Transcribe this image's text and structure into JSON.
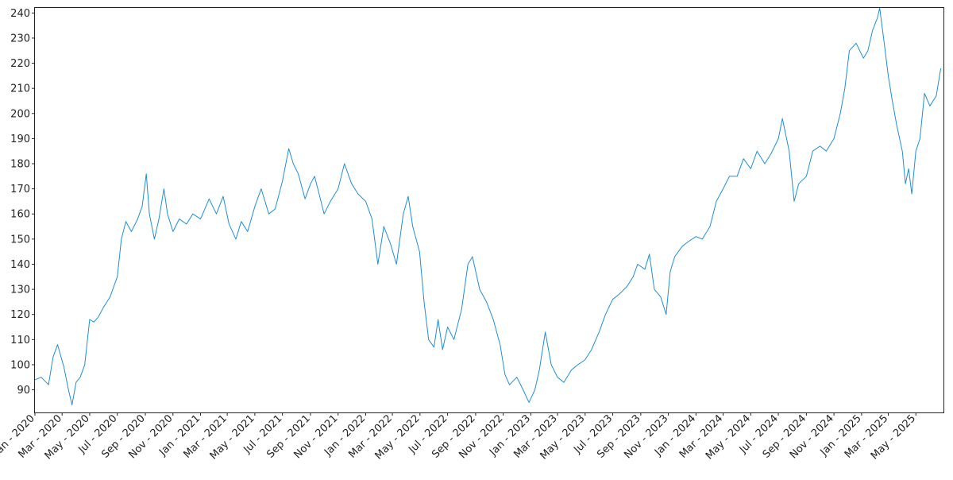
{
  "chart_data": {
    "type": "line",
    "title": "",
    "xlabel": "",
    "ylabel": "",
    "grid": false,
    "legend": "none",
    "line_color": "#1f8fd6",
    "xlim": [
      "2020-01-01",
      "2025-07-01"
    ],
    "ylim": [
      81,
      242
    ],
    "y_ticks": [
      90,
      100,
      110,
      120,
      130,
      140,
      150,
      160,
      170,
      180,
      190,
      200,
      210,
      220,
      230,
      240
    ],
    "x_ticks": [
      {
        "date": "2020-01-01",
        "label": "Jan - 2020"
      },
      {
        "date": "2020-03-01",
        "label": "Mar - 2020"
      },
      {
        "date": "2020-05-01",
        "label": "May - 2020"
      },
      {
        "date": "2020-07-01",
        "label": "Jul - 2020"
      },
      {
        "date": "2020-09-01",
        "label": "Sep - 2020"
      },
      {
        "date": "2020-11-01",
        "label": "Nov - 2020"
      },
      {
        "date": "2021-01-01",
        "label": "Jan - 2021"
      },
      {
        "date": "2021-03-01",
        "label": "Mar - 2021"
      },
      {
        "date": "2021-05-01",
        "label": "May - 2021"
      },
      {
        "date": "2021-07-01",
        "label": "Jul - 2021"
      },
      {
        "date": "2021-09-01",
        "label": "Sep - 2021"
      },
      {
        "date": "2021-11-01",
        "label": "Nov - 2021"
      },
      {
        "date": "2022-01-01",
        "label": "Jan - 2022"
      },
      {
        "date": "2022-03-01",
        "label": "Mar - 2022"
      },
      {
        "date": "2022-05-01",
        "label": "May - 2022"
      },
      {
        "date": "2022-07-01",
        "label": "Jul - 2022"
      },
      {
        "date": "2022-09-01",
        "label": "Sep - 2022"
      },
      {
        "date": "2022-11-01",
        "label": "Nov - 2022"
      },
      {
        "date": "2023-01-01",
        "label": "Jan - 2023"
      },
      {
        "date": "2023-03-01",
        "label": "Mar - 2023"
      },
      {
        "date": "2023-05-01",
        "label": "May - 2023"
      },
      {
        "date": "2023-07-01",
        "label": "Jul - 2023"
      },
      {
        "date": "2023-09-01",
        "label": "Sep - 2023"
      },
      {
        "date": "2023-11-01",
        "label": "Nov - 2023"
      },
      {
        "date": "2024-01-01",
        "label": "Jan - 2024"
      },
      {
        "date": "2024-03-01",
        "label": "Mar - 2024"
      },
      {
        "date": "2024-05-01",
        "label": "May - 2024"
      },
      {
        "date": "2024-07-01",
        "label": "Jul - 2024"
      },
      {
        "date": "2024-09-01",
        "label": "Sep - 2024"
      },
      {
        "date": "2024-11-01",
        "label": "Nov - 2024"
      },
      {
        "date": "2025-01-01",
        "label": "Jan - 2025"
      },
      {
        "date": "2025-03-01",
        "label": "Mar - 2025"
      },
      {
        "date": "2025-05-01",
        "label": "May - 2025"
      }
    ],
    "series": [
      {
        "points": [
          [
            "2020-01-01",
            94
          ],
          [
            "2020-01-15",
            95
          ],
          [
            "2020-01-31",
            92
          ],
          [
            "2020-02-10",
            103
          ],
          [
            "2020-02-20",
            108
          ],
          [
            "2020-03-05",
            99
          ],
          [
            "2020-03-15",
            90
          ],
          [
            "2020-03-23",
            84
          ],
          [
            "2020-04-01",
            93
          ],
          [
            "2020-04-10",
            95
          ],
          [
            "2020-04-20",
            100
          ],
          [
            "2020-05-01",
            118
          ],
          [
            "2020-05-10",
            117
          ],
          [
            "2020-05-20",
            119
          ],
          [
            "2020-06-01",
            123
          ],
          [
            "2020-06-15",
            127
          ],
          [
            "2020-07-01",
            135
          ],
          [
            "2020-07-10",
            150
          ],
          [
            "2020-07-20",
            157
          ],
          [
            "2020-08-01",
            153
          ],
          [
            "2020-08-15",
            158
          ],
          [
            "2020-08-25",
            163
          ],
          [
            "2020-09-03",
            176
          ],
          [
            "2020-09-10",
            160
          ],
          [
            "2020-09-21",
            150
          ],
          [
            "2020-10-01",
            158
          ],
          [
            "2020-10-12",
            170
          ],
          [
            "2020-10-20",
            160
          ],
          [
            "2020-11-01",
            153
          ],
          [
            "2020-11-15",
            158
          ],
          [
            "2020-12-01",
            156
          ],
          [
            "2020-12-15",
            160
          ],
          [
            "2021-01-01",
            158
          ],
          [
            "2021-01-20",
            166
          ],
          [
            "2021-02-05",
            160
          ],
          [
            "2021-02-20",
            167
          ],
          [
            "2021-03-05",
            156
          ],
          [
            "2021-03-20",
            150
          ],
          [
            "2021-04-01",
            157
          ],
          [
            "2021-04-15",
            153
          ],
          [
            "2021-05-01",
            163
          ],
          [
            "2021-05-15",
            170
          ],
          [
            "2021-06-01",
            160
          ],
          [
            "2021-06-15",
            162
          ],
          [
            "2021-07-01",
            173
          ],
          [
            "2021-07-15",
            186
          ],
          [
            "2021-07-25",
            180
          ],
          [
            "2021-08-05",
            176
          ],
          [
            "2021-08-20",
            166
          ],
          [
            "2021-09-01",
            172
          ],
          [
            "2021-09-10",
            175
          ],
          [
            "2021-09-20",
            168
          ],
          [
            "2021-10-01",
            160
          ],
          [
            "2021-10-15",
            165
          ],
          [
            "2021-11-01",
            170
          ],
          [
            "2021-11-15",
            180
          ],
          [
            "2021-12-01",
            172
          ],
          [
            "2021-12-15",
            168
          ],
          [
            "2022-01-01",
            165
          ],
          [
            "2022-01-15",
            158
          ],
          [
            "2022-01-28",
            140
          ],
          [
            "2022-02-10",
            155
          ],
          [
            "2022-02-25",
            148
          ],
          [
            "2022-03-10",
            140
          ],
          [
            "2022-03-25",
            160
          ],
          [
            "2022-04-05",
            167
          ],
          [
            "2022-04-15",
            155
          ],
          [
            "2022-04-30",
            145
          ],
          [
            "2022-05-10",
            125
          ],
          [
            "2022-05-20",
            110
          ],
          [
            "2022-06-01",
            107
          ],
          [
            "2022-06-10",
            118
          ],
          [
            "2022-06-20",
            106
          ],
          [
            "2022-07-01",
            115
          ],
          [
            "2022-07-15",
            110
          ],
          [
            "2022-08-01",
            122
          ],
          [
            "2022-08-15",
            140
          ],
          [
            "2022-08-25",
            143
          ],
          [
            "2022-09-10",
            130
          ],
          [
            "2022-09-25",
            125
          ],
          [
            "2022-10-10",
            118
          ],
          [
            "2022-10-25",
            108
          ],
          [
            "2022-11-05",
            96
          ],
          [
            "2022-11-15",
            92
          ],
          [
            "2022-12-01",
            95
          ],
          [
            "2022-12-15",
            90
          ],
          [
            "2022-12-28",
            85
          ],
          [
            "2023-01-10",
            90
          ],
          [
            "2023-01-20",
            98
          ],
          [
            "2023-02-02",
            113
          ],
          [
            "2023-02-15",
            100
          ],
          [
            "2023-03-01",
            95
          ],
          [
            "2023-03-15",
            93
          ],
          [
            "2023-04-01",
            98
          ],
          [
            "2023-04-15",
            100
          ],
          [
            "2023-05-01",
            102
          ],
          [
            "2023-05-15",
            106
          ],
          [
            "2023-06-01",
            113
          ],
          [
            "2023-06-15",
            120
          ],
          [
            "2023-07-01",
            126
          ],
          [
            "2023-07-15",
            128
          ],
          [
            "2023-08-01",
            131
          ],
          [
            "2023-08-15",
            135
          ],
          [
            "2023-08-25",
            140
          ],
          [
            "2023-09-10",
            138
          ],
          [
            "2023-09-20",
            144
          ],
          [
            "2023-10-01",
            130
          ],
          [
            "2023-10-15",
            127
          ],
          [
            "2023-10-27",
            120
          ],
          [
            "2023-11-05",
            137
          ],
          [
            "2023-11-15",
            143
          ],
          [
            "2023-12-01",
            147
          ],
          [
            "2023-12-15",
            149
          ],
          [
            "2024-01-01",
            151
          ],
          [
            "2024-01-15",
            150
          ],
          [
            "2024-02-01",
            155
          ],
          [
            "2024-02-15",
            165
          ],
          [
            "2024-03-01",
            170
          ],
          [
            "2024-03-15",
            175
          ],
          [
            "2024-04-01",
            175
          ],
          [
            "2024-04-15",
            182
          ],
          [
            "2024-05-01",
            178
          ],
          [
            "2024-05-15",
            185
          ],
          [
            "2024-06-01",
            180
          ],
          [
            "2024-06-15",
            184
          ],
          [
            "2024-07-01",
            190
          ],
          [
            "2024-07-10",
            198
          ],
          [
            "2024-07-25",
            185
          ],
          [
            "2024-08-05",
            165
          ],
          [
            "2024-08-15",
            172
          ],
          [
            "2024-09-01",
            175
          ],
          [
            "2024-09-15",
            185
          ],
          [
            "2024-10-01",
            187
          ],
          [
            "2024-10-15",
            185
          ],
          [
            "2024-11-01",
            190
          ],
          [
            "2024-11-15",
            200
          ],
          [
            "2024-11-25",
            210
          ],
          [
            "2024-12-05",
            225
          ],
          [
            "2024-12-20",
            228
          ],
          [
            "2025-01-05",
            222
          ],
          [
            "2025-01-15",
            225
          ],
          [
            "2025-01-25",
            233
          ],
          [
            "2025-02-05",
            238
          ],
          [
            "2025-02-10",
            242
          ],
          [
            "2025-02-20",
            228
          ],
          [
            "2025-03-01",
            215
          ],
          [
            "2025-03-10",
            205
          ],
          [
            "2025-03-20",
            195
          ],
          [
            "2025-04-01",
            185
          ],
          [
            "2025-04-08",
            172
          ],
          [
            "2025-04-15",
            178
          ],
          [
            "2025-04-22",
            168
          ],
          [
            "2025-05-01",
            185
          ],
          [
            "2025-05-10",
            190
          ],
          [
            "2025-05-20",
            208
          ],
          [
            "2025-06-01",
            203
          ],
          [
            "2025-06-15",
            207
          ],
          [
            "2025-06-25",
            218
          ]
        ]
      }
    ]
  }
}
